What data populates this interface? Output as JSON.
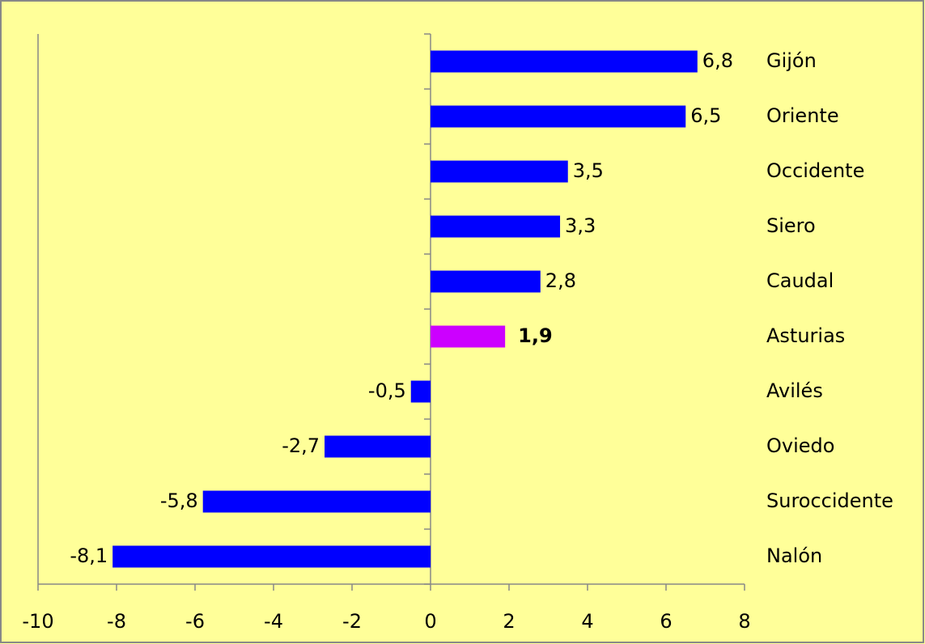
{
  "chart_data": {
    "type": "hbar",
    "categories": [
      "Gijón",
      "Oriente",
      "Occidente",
      "Siero",
      "Caudal",
      "Asturias",
      "Avilés",
      "Oviedo",
      "Suroccidente",
      "Nalón"
    ],
    "values": [
      6.8,
      6.5,
      3.5,
      3.3,
      2.8,
      1.9,
      -0.5,
      -2.7,
      -5.8,
      -8.1
    ],
    "value_labels": [
      "6,8",
      "6,5",
      "3,5",
      "3,3",
      "2,8",
      "1,9",
      "-0,5",
      "-2,7",
      "-5,8",
      "-8,1"
    ],
    "color": "#0000ff",
    "highlight": {
      "category": "Asturias",
      "color": "#cc00ff",
      "bold": true
    },
    "xlim": [
      -10,
      8
    ],
    "xticks": [
      -10,
      -8,
      -6,
      -4,
      -2,
      0,
      2,
      4,
      6,
      8
    ],
    "grid": false
  }
}
